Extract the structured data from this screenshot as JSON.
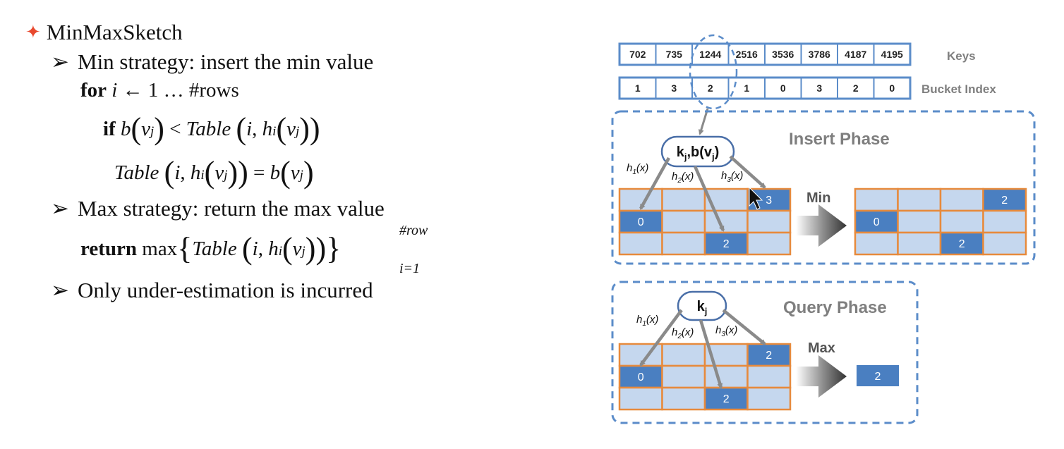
{
  "bullets": {
    "title": "MinMaxSketch",
    "min_strategy": "Min strategy: insert the min value",
    "for_kw": "for",
    "for_var": "i",
    "for_arrow": "←",
    "for_range": "1 … #rows",
    "if_kw": "if",
    "if_lhs_fn": "b",
    "v": "v",
    "j": "j",
    "table": "Table",
    "i": "i",
    "h": "h",
    "lt": "<",
    "eq": "=",
    "max_strategy": "Max strategy: return the max value",
    "return_kw": "return",
    "max_fn": "max",
    "upper": "#row",
    "lower": "i=1",
    "under": "Only under-estimation is incurred"
  },
  "diagram": {
    "keys_label": "Keys",
    "bucket_label": "Bucket Index",
    "keys": [
      "702",
      "735",
      "1244",
      "2516",
      "3536",
      "3786",
      "4187",
      "4195"
    ],
    "buckets": [
      "1",
      "3",
      "2",
      "1",
      "0",
      "3",
      "2",
      "0"
    ],
    "insert_title": "Insert Phase",
    "query_title": "Query Phase",
    "insert_node": "k",
    "insert_node_sub": "j",
    "insert_node_rest": ",b(v",
    "insert_node_sub2": "j",
    "insert_node_close": ")",
    "query_node": "k",
    "query_node_sub": "j",
    "h1": "h",
    "h1_sub": "1",
    "h2_sub": "2",
    "h3_sub": "3",
    "hx": "(x)",
    "min_label": "Min",
    "max_label": "Max",
    "insert_before_cells": [
      {
        "row": 0,
        "col": 3,
        "v": "3"
      },
      {
        "row": 1,
        "col": 0,
        "v": "0"
      },
      {
        "row": 2,
        "col": 2,
        "v": "2"
      }
    ],
    "insert_after_cells": [
      {
        "row": 0,
        "col": 3,
        "v": "2"
      },
      {
        "row": 1,
        "col": 0,
        "v": "0"
      },
      {
        "row": 2,
        "col": 2,
        "v": "2"
      }
    ],
    "query_cells": [
      {
        "row": 0,
        "col": 3,
        "v": "2"
      },
      {
        "row": 1,
        "col": 0,
        "v": "0"
      },
      {
        "row": 2,
        "col": 2,
        "v": "2"
      }
    ],
    "query_result": "2",
    "colors": {
      "cell": "#c5d7ee",
      "active": "#4a7fc1",
      "grid": "#e78a3c",
      "dash": "#5b8cc9",
      "arrow": "#8a8a8a",
      "title": "#7f7f7f"
    }
  }
}
